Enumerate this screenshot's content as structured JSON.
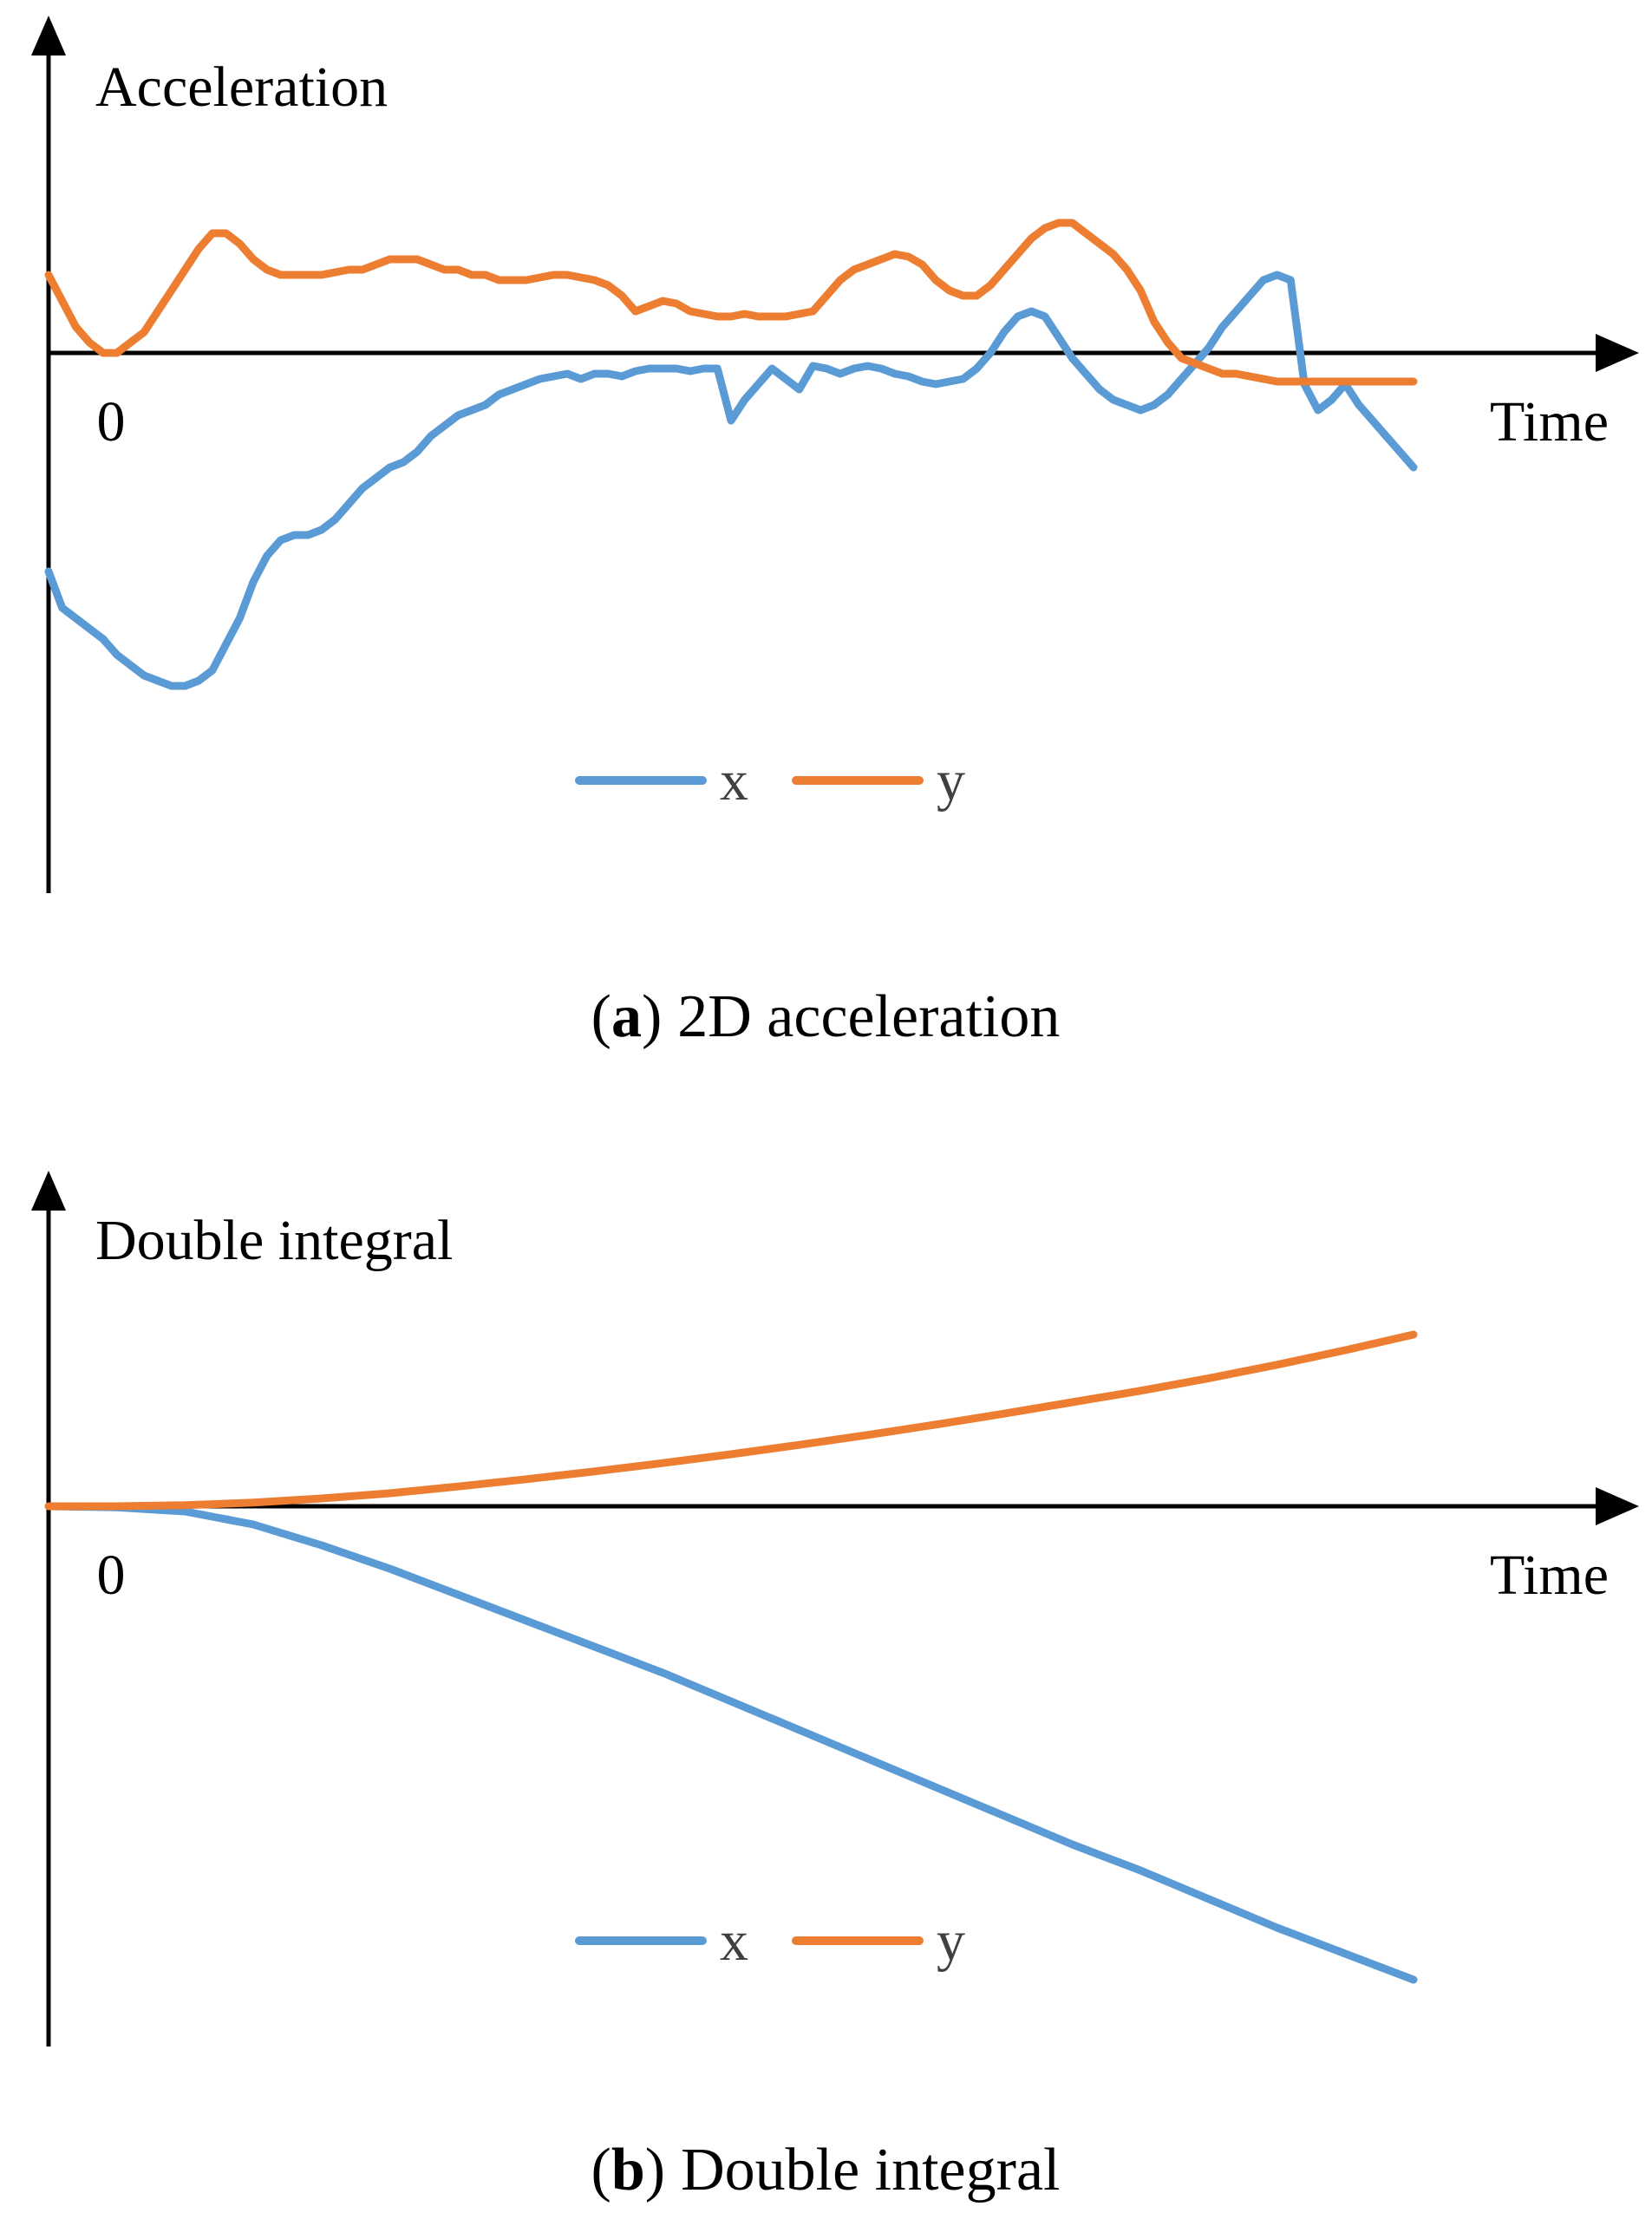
{
  "colors": {
    "x": "#5B9BD5",
    "y": "#ED7D31",
    "axis": "#000000"
  },
  "chart_data": [
    {
      "type": "line",
      "ylabel": "Acceleration",
      "xlabel": "Time",
      "origin_label": "0",
      "caption": {
        "letter": "a",
        "text": "2D acceleration",
        "open": "(",
        "close": ")"
      },
      "xlim": [
        0,
        100
      ],
      "ylim": [
        -10,
        6
      ],
      "x": [
        0,
        1,
        2,
        3,
        4,
        5,
        6,
        7,
        8,
        9,
        10,
        11,
        12,
        13,
        14,
        15,
        16,
        17,
        18,
        19,
        20,
        21,
        22,
        23,
        24,
        25,
        26,
        27,
        28,
        29,
        30,
        31,
        32,
        33,
        34,
        35,
        36,
        37,
        38,
        39,
        40,
        41,
        42,
        43,
        44,
        45,
        46,
        47,
        48,
        49,
        50,
        51,
        52,
        53,
        54,
        55,
        56,
        57,
        58,
        59,
        60,
        61,
        62,
        63,
        64,
        65,
        66,
        67,
        68,
        69,
        70,
        71,
        72,
        73,
        74,
        75,
        76,
        77,
        78,
        79,
        80,
        81,
        82,
        83,
        84,
        85,
        86,
        87,
        88,
        89,
        90,
        91,
        92,
        93,
        94,
        95,
        96,
        97,
        98,
        99,
        100
      ],
      "series": [
        {
          "name": "x",
          "values": [
            -4.2,
            -4.9,
            -5.1,
            -5.3,
            -5.5,
            -5.8,
            -6.0,
            -6.2,
            -6.3,
            -6.4,
            -6.4,
            -6.3,
            -6.1,
            -5.6,
            -5.1,
            -4.4,
            -3.9,
            -3.6,
            -3.5,
            -3.5,
            -3.4,
            -3.2,
            -2.9,
            -2.6,
            -2.4,
            -2.2,
            -2.1,
            -1.9,
            -1.6,
            -1.4,
            -1.2,
            -1.1,
            -1.0,
            -0.8,
            -0.7,
            -0.6,
            -0.5,
            -0.45,
            -0.4,
            -0.5,
            -0.4,
            -0.4,
            -0.45,
            -0.35,
            -0.3,
            -0.3,
            -0.3,
            -0.35,
            -0.3,
            -0.3,
            -1.3,
            -0.9,
            -0.6,
            -0.3,
            -0.5,
            -0.7,
            -0.25,
            -0.3,
            -0.4,
            -0.3,
            -0.25,
            -0.3,
            -0.4,
            -0.45,
            -0.55,
            -0.6,
            -0.55,
            -0.5,
            -0.3,
            0.0,
            0.4,
            0.7,
            0.8,
            0.7,
            0.3,
            -0.1,
            -0.4,
            -0.7,
            -0.9,
            -1.0,
            -1.1,
            -1.0,
            -0.8,
            -0.5,
            -0.2,
            0.1,
            0.5,
            0.8,
            1.1,
            1.4,
            1.5,
            1.4,
            -0.6,
            -1.1,
            -0.9,
            -0.6,
            -1.0,
            -1.3,
            -1.6,
            -1.9,
            -2.2
          ]
        },
        {
          "name": "y",
          "values": [
            1.5,
            1.0,
            0.5,
            0.2,
            0.0,
            0.0,
            0.2,
            0.4,
            0.8,
            1.2,
            1.6,
            2.0,
            2.3,
            2.3,
            2.1,
            1.8,
            1.6,
            1.5,
            1.5,
            1.5,
            1.5,
            1.55,
            1.6,
            1.6,
            1.7,
            1.8,
            1.8,
            1.8,
            1.7,
            1.6,
            1.6,
            1.5,
            1.5,
            1.4,
            1.4,
            1.4,
            1.45,
            1.5,
            1.5,
            1.45,
            1.4,
            1.3,
            1.1,
            0.8,
            0.9,
            1.0,
            0.95,
            0.8,
            0.75,
            0.7,
            0.7,
            0.75,
            0.7,
            0.7,
            0.7,
            0.75,
            0.8,
            1.1,
            1.4,
            1.6,
            1.7,
            1.8,
            1.9,
            1.85,
            1.7,
            1.4,
            1.2,
            1.1,
            1.1,
            1.3,
            1.6,
            1.9,
            2.2,
            2.4,
            2.5,
            2.5,
            2.3,
            2.1,
            1.9,
            1.6,
            1.2,
            0.6,
            0.2,
            -0.1,
            -0.2,
            -0.3,
            -0.4,
            -0.4,
            -0.45,
            -0.5,
            -0.55,
            -0.55,
            -0.55,
            -0.55,
            -0.55,
            -0.55,
            -0.55,
            -0.55,
            -0.55,
            -0.55,
            -0.55
          ]
        }
      ],
      "legend": [
        "x",
        "y"
      ],
      "legend_position": "bottom-center",
      "grid": false
    },
    {
      "type": "line",
      "ylabel": "Double integral",
      "xlabel": "Time",
      "origin_label": "0",
      "caption": {
        "letter": "b",
        "text": "Double integral",
        "open": "(",
        "close": ")"
      },
      "xlim": [
        0,
        100
      ],
      "ylim": [
        -10,
        6
      ],
      "x": [
        0,
        5,
        10,
        15,
        20,
        25,
        30,
        35,
        40,
        45,
        50,
        55,
        60,
        65,
        70,
        75,
        80,
        85,
        90,
        95,
        100
      ],
      "series": [
        {
          "name": "x",
          "values": [
            0.0,
            -0.02,
            -0.1,
            -0.35,
            -0.75,
            -1.2,
            -1.7,
            -2.2,
            -2.7,
            -3.2,
            -3.75,
            -4.3,
            -4.85,
            -5.4,
            -5.95,
            -6.5,
            -7.0,
            -7.55,
            -8.1,
            -8.6,
            -9.1
          ]
        },
        {
          "name": "y",
          "values": [
            0.0,
            0.0,
            0.02,
            0.07,
            0.15,
            0.25,
            0.38,
            0.52,
            0.67,
            0.83,
            1.0,
            1.18,
            1.37,
            1.57,
            1.78,
            2.0,
            2.22,
            2.46,
            2.72,
            3.0,
            3.3
          ]
        }
      ],
      "legend": [
        "x",
        "y"
      ],
      "legend_position": "bottom-center",
      "grid": false
    }
  ]
}
